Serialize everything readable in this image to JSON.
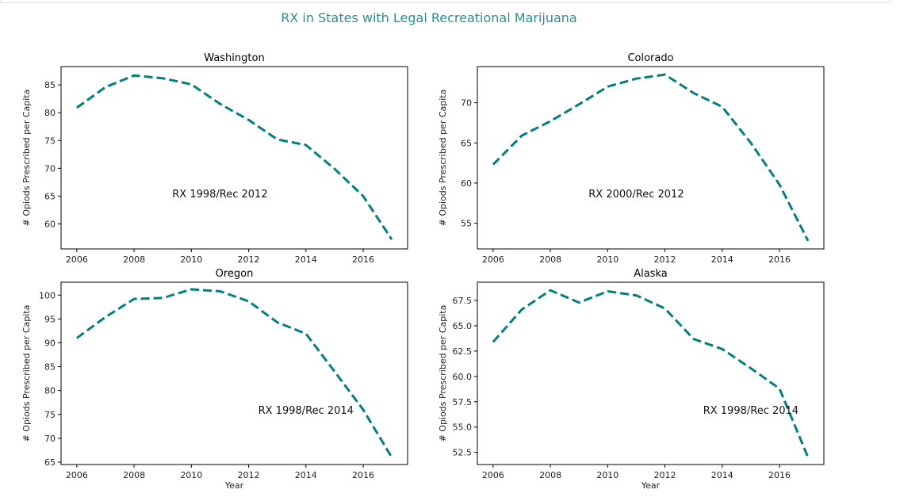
{
  "figure": {
    "title": "RX in States with Legal Recreational Marijuana",
    "line_color": "#008080"
  },
  "chart_data": [
    {
      "type": "line",
      "title": "Washington",
      "xlabel": "",
      "ylabel": "# Opiods Prescribed per Capita",
      "x": [
        2006,
        2007,
        2008,
        2009,
        2010,
        2011,
        2012,
        2013,
        2014,
        2015,
        2016,
        2017
      ],
      "y": [
        80.9,
        84.6,
        86.7,
        86.2,
        85.1,
        81.6,
        78.7,
        75.2,
        74.2,
        69.9,
        65.0,
        57.2
      ],
      "xlim": [
        2005.45,
        2017.55
      ],
      "ylim": [
        55.5,
        88.3
      ],
      "xticks": [
        2006,
        2008,
        2010,
        2012,
        2014,
        2016
      ],
      "yticks": [
        60,
        65,
        70,
        75,
        80,
        85
      ],
      "annotation": "RX 1998/Rec 2012",
      "annotation_pos": [
        2011,
        65.5
      ]
    },
    {
      "type": "line",
      "title": "Colorado",
      "xlabel": "",
      "ylabel": "# Opiods Prescribed per Capita",
      "x": [
        2006,
        2007,
        2008,
        2009,
        2010,
        2011,
        2012,
        2013,
        2014,
        2015,
        2016,
        2017
      ],
      "y": [
        62.3,
        65.9,
        67.7,
        69.8,
        72.0,
        73.0,
        73.5,
        71.2,
        69.5,
        65.0,
        59.8,
        52.8
      ],
      "xlim": [
        2005.45,
        2017.55
      ],
      "ylim": [
        51.8,
        74.5
      ],
      "xticks": [
        2006,
        2008,
        2010,
        2012,
        2014,
        2016
      ],
      "yticks": [
        55,
        60,
        65,
        70
      ],
      "annotation": "RX 2000/Rec 2012",
      "annotation_pos": [
        2011,
        58.7
      ]
    },
    {
      "type": "line",
      "title": "Oregon",
      "xlabel": "Year",
      "ylabel": "# Opiods Prescribed per Capita",
      "x": [
        2006,
        2007,
        2008,
        2009,
        2010,
        2011,
        2012,
        2013,
        2014,
        2015,
        2016,
        2017
      ],
      "y": [
        91.0,
        95.4,
        99.2,
        99.4,
        101.2,
        100.8,
        98.7,
        94.3,
        91.9,
        84.0,
        76.0,
        66.0
      ],
      "xlim": [
        2005.45,
        2017.55
      ],
      "ylim": [
        64.5,
        102.7
      ],
      "xticks": [
        2006,
        2008,
        2010,
        2012,
        2014,
        2016
      ],
      "yticks": [
        65,
        70,
        75,
        80,
        85,
        90,
        95,
        100
      ],
      "annotation": "RX 1998/Rec 2014",
      "annotation_pos": [
        2014,
        76
      ]
    },
    {
      "type": "line",
      "title": "Alaska",
      "xlabel": "Year",
      "ylabel": "# Opiods Prescribed per Capita",
      "x": [
        2006,
        2007,
        2008,
        2009,
        2010,
        2011,
        2012,
        2013,
        2014,
        2015,
        2016,
        2017
      ],
      "y": [
        63.4,
        66.6,
        68.5,
        67.3,
        68.4,
        68.0,
        66.7,
        63.7,
        62.7,
        60.8,
        58.8,
        52.0
      ],
      "xlim": [
        2005.45,
        2017.55
      ],
      "ylim": [
        51.3,
        69.3
      ],
      "xticks": [
        2006,
        2008,
        2010,
        2012,
        2014,
        2016
      ],
      "yticks": [
        52.5,
        55.0,
        57.5,
        60.0,
        62.5,
        65.0,
        67.5
      ],
      "annotation": "RX 1998/Rec 2014",
      "annotation_pos": [
        2015,
        56.7
      ]
    }
  ]
}
